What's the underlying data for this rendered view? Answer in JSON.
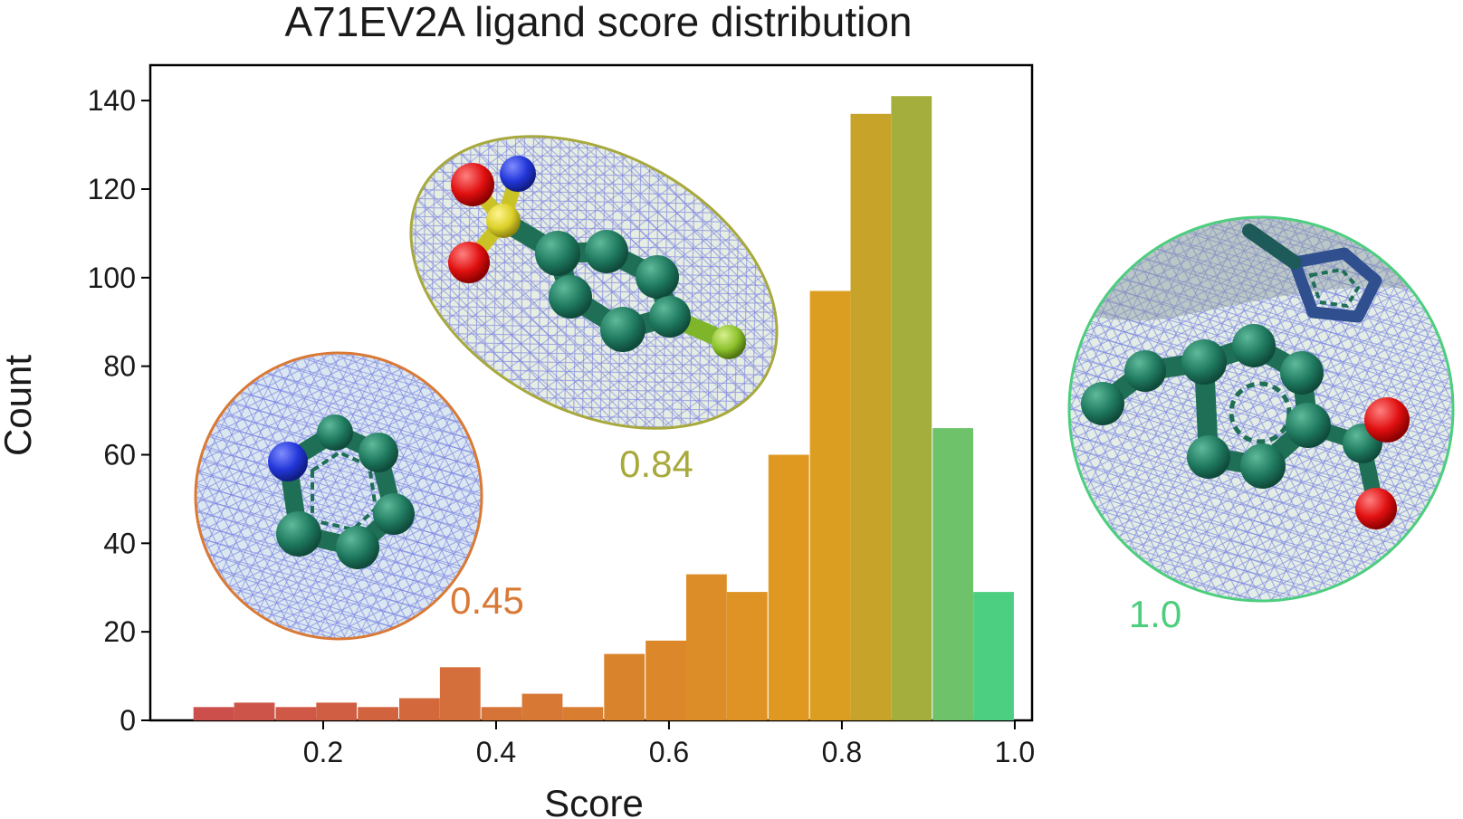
{
  "chart_data": {
    "type": "bar",
    "title": "A71EV2A ligand score distribution",
    "xlabel": "Score",
    "ylabel": "Count",
    "xlim": [
      0.0,
      1.02
    ],
    "ylim": [
      0,
      148
    ],
    "x_ticks": [
      "0.2",
      "0.4",
      "0.6",
      "0.8",
      "1.0"
    ],
    "x_tick_values": [
      0.2,
      0.4,
      0.6,
      0.8,
      1.0
    ],
    "y_ticks": [
      "0",
      "20",
      "40",
      "60",
      "80",
      "100",
      "120",
      "140"
    ],
    "y_tick_values": [
      0,
      20,
      40,
      60,
      80,
      100,
      120,
      140
    ],
    "grid": false,
    "bin_width": 0.0475,
    "bins": [
      {
        "x0": 0.05,
        "count": 3,
        "color": "#cc4f4c"
      },
      {
        "x0": 0.097,
        "count": 4,
        "color": "#cc5449"
      },
      {
        "x0": 0.145,
        "count": 3,
        "color": "#cf5946"
      },
      {
        "x0": 0.192,
        "count": 4,
        "color": "#d05e43"
      },
      {
        "x0": 0.24,
        "count": 3,
        "color": "#d1633f"
      },
      {
        "x0": 0.288,
        "count": 5,
        "color": "#d3683d"
      },
      {
        "x0": 0.335,
        "count": 12,
        "color": "#d46e3a"
      },
      {
        "x0": 0.383,
        "count": 3,
        "color": "#d67337"
      },
      {
        "x0": 0.43,
        "count": 6,
        "color": "#d77834"
      },
      {
        "x0": 0.477,
        "count": 3,
        "color": "#d97d31"
      },
      {
        "x0": 0.525,
        "count": 15,
        "color": "#da832d"
      },
      {
        "x0": 0.573,
        "count": 18,
        "color": "#dc882a"
      },
      {
        "x0": 0.62,
        "count": 33,
        "color": "#dd8d27"
      },
      {
        "x0": 0.667,
        "count": 29,
        "color": "#de9324"
      },
      {
        "x0": 0.715,
        "count": 60,
        "color": "#df9921"
      },
      {
        "x0": 0.763,
        "count": 97,
        "color": "#dc9e20"
      },
      {
        "x0": 0.81,
        "count": 137,
        "color": "#c8a329"
      },
      {
        "x0": 0.857,
        "count": 141,
        "color": "#a3ae3d"
      },
      {
        "x0": 0.905,
        "count": 66,
        "color": "#6ec36a"
      },
      {
        "x0": 0.952,
        "count": 29,
        "color": "#4ccf80"
      }
    ],
    "annotations": [
      {
        "text": "0.45",
        "x": 0.45,
        "color": "#d97935"
      },
      {
        "text": "0.84",
        "x": 0.84,
        "color": "#a8a93c"
      },
      {
        "text": "1.0",
        "x": 1.0,
        "color": "#4cce7e"
      }
    ]
  },
  "insets": [
    {
      "name": "inset-score-045",
      "shape": "circle",
      "stroke": "#d97935",
      "tint": "#dbe7f0"
    },
    {
      "name": "inset-score-084",
      "shape": "ellipse",
      "stroke": "#a8a93c",
      "tint": "#e6ede3"
    },
    {
      "name": "inset-score-10",
      "shape": "circle",
      "stroke": "#4cce7e",
      "tint": "#e3ede6"
    }
  ]
}
